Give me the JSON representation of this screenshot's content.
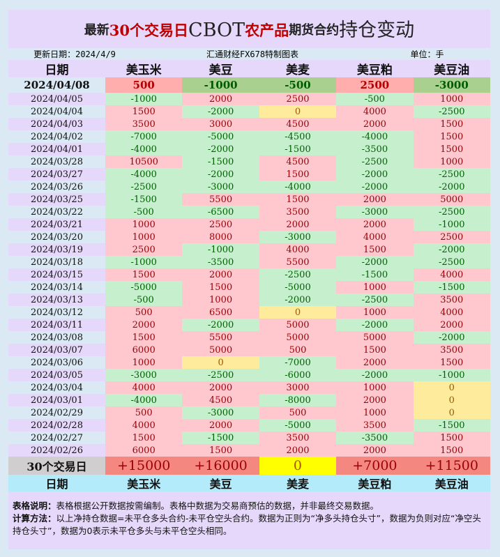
{
  "title": {
    "part1": "最新",
    "part2": "30个交易日",
    "part3": "CBOT",
    "part4": "农产品",
    "part5": "期货合约",
    "part6": "持仓变动"
  },
  "info": {
    "update": "更新日期：2024/4/9",
    "source": "汇通财经FX678特制图表",
    "unit": "单位：手"
  },
  "columns": [
    "日期",
    "美玉米",
    "美豆",
    "美麦",
    "美豆粕",
    "美豆油"
  ],
  "rows": [
    {
      "date": "2024/04/08",
      "values": [
        "500",
        "-1000",
        "-500",
        "2500",
        "-3000"
      ]
    },
    {
      "date": "2024/04/05",
      "values": [
        "-1000",
        "2000",
        "2500",
        "-500",
        "1000"
      ]
    },
    {
      "date": "2024/04/04",
      "values": [
        "1500",
        "-2000",
        "0",
        "4000",
        "-2500"
      ]
    },
    {
      "date": "2024/04/03",
      "values": [
        "3500",
        "3000",
        "4500",
        "2000",
        "1500"
      ]
    },
    {
      "date": "2024/04/02",
      "values": [
        "-7000",
        "-5000",
        "-4500",
        "-4000",
        "1500"
      ]
    },
    {
      "date": "2024/04/01",
      "values": [
        "-4000",
        "-2000",
        "-1500",
        "-3500",
        "1500"
      ]
    },
    {
      "date": "2024/03/28",
      "values": [
        "10500",
        "-1500",
        "4500",
        "-2500",
        "1000"
      ]
    },
    {
      "date": "2024/03/27",
      "values": [
        "-4000",
        "-2000",
        "1500",
        "-2000",
        "-2500"
      ]
    },
    {
      "date": "2024/03/26",
      "values": [
        "-2500",
        "-3000",
        "-4000",
        "-2000",
        "-2000"
      ]
    },
    {
      "date": "2024/03/25",
      "values": [
        "-1500",
        "5500",
        "1500",
        "2000",
        "5000"
      ]
    },
    {
      "date": "2024/03/22",
      "values": [
        "-500",
        "-6500",
        "3500",
        "-3000",
        "-2500"
      ]
    },
    {
      "date": "2024/03/21",
      "values": [
        "1000",
        "2500",
        "2000",
        "2000",
        "-1000"
      ]
    },
    {
      "date": "2024/03/20",
      "values": [
        "1000",
        "8000",
        "-3000",
        "4000",
        "2500"
      ]
    },
    {
      "date": "2024/03/19",
      "values": [
        "2500",
        "-1000",
        "4000",
        "1500",
        "-2000"
      ]
    },
    {
      "date": "2024/03/18",
      "values": [
        "-1000",
        "-3500",
        "5500",
        "-2000",
        "-2500"
      ]
    },
    {
      "date": "2024/03/15",
      "values": [
        "1500",
        "2000",
        "-2500",
        "-1500",
        "4000"
      ]
    },
    {
      "date": "2024/03/14",
      "values": [
        "-5000",
        "1500",
        "-5000",
        "1000",
        "-1500"
      ]
    },
    {
      "date": "2024/03/13",
      "values": [
        "-500",
        "1000",
        "-2000",
        "-2500",
        "3500"
      ]
    },
    {
      "date": "2024/03/12",
      "values": [
        "500",
        "6500",
        "0",
        "1000",
        "4000"
      ]
    },
    {
      "date": "2024/03/11",
      "values": [
        "2000",
        "-2000",
        "5000",
        "-2000",
        "2000"
      ]
    },
    {
      "date": "2024/03/08",
      "values": [
        "1500",
        "5500",
        "5000",
        "5000",
        "-2000"
      ]
    },
    {
      "date": "2024/03/07",
      "values": [
        "6000",
        "5000",
        "500",
        "1500",
        "3500"
      ]
    },
    {
      "date": "2024/03/06",
      "values": [
        "1000",
        "0",
        "-7000",
        "2000",
        "1500"
      ]
    },
    {
      "date": "2024/03/05",
      "values": [
        "-3000",
        "-2500",
        "-6000",
        "-2000",
        "-1000"
      ]
    },
    {
      "date": "2024/03/04",
      "values": [
        "4000",
        "2000",
        "3000",
        "1000",
        "0"
      ]
    },
    {
      "date": "2024/03/01",
      "values": [
        "-4000",
        "4500",
        "-8000",
        "2000",
        "0"
      ]
    },
    {
      "date": "2024/02/29",
      "values": [
        "500",
        "-3000",
        "500",
        "1000",
        "0"
      ]
    },
    {
      "date": "2024/02/28",
      "values": [
        "4000",
        "2000",
        "-5000",
        "3500",
        "-1500"
      ]
    },
    {
      "date": "2024/02/27",
      "values": [
        "1500",
        "-1500",
        "3500",
        "-3500",
        "1500"
      ]
    },
    {
      "date": "2024/02/26",
      "values": [
        "6000",
        "1500",
        "2000",
        "2000",
        "1500"
      ]
    }
  ],
  "summary": {
    "label": "30个交易日",
    "values": [
      "+15000",
      "+16000",
      "0",
      "+7000",
      "+11500"
    ]
  },
  "notes": {
    "label1": "表格说明：",
    "text1": "表格根据公开数据按需编制。表格中数据为交易商预估的数据，并非最终交易数据。",
    "label2": "计算方法：",
    "text2": "以上净持仓数据=未平仓多头合约-未平仓空头合约。数据为正则为“净多头持仓头寸”，数据为负则对应“净空头持仓头寸”，数据为0表示未平仓多头与未平仓空头相同。"
  },
  "colors": {
    "positive_bg": "#ffc7ce",
    "positive_text": "#9c0006",
    "negative_bg": "#c6efce",
    "negative_text": "#006100",
    "zero_bg": "#ffeb9c",
    "zero_text": "#9c5700"
  }
}
